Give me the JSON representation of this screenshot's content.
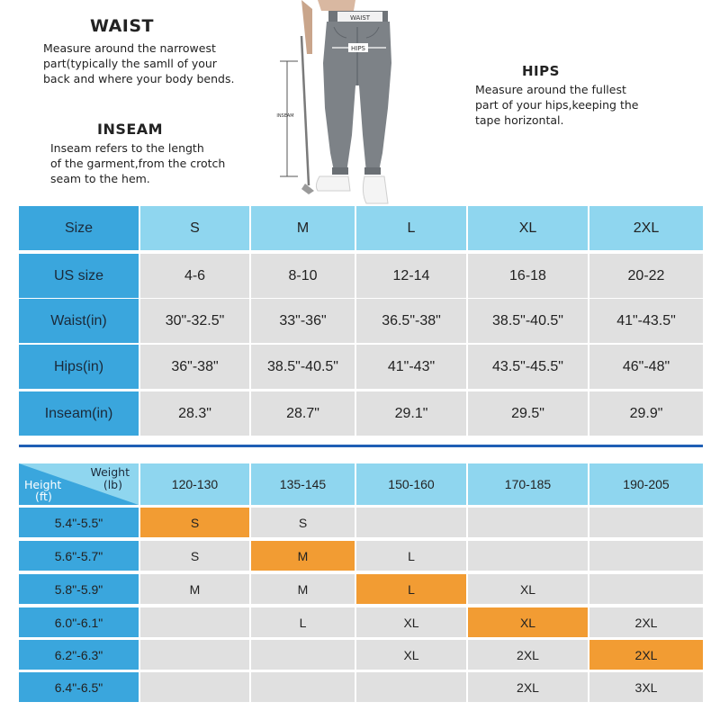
{
  "waist": {
    "heading": "WAIST",
    "lines": [
      "Measure around the narrowest",
      "part(typically the samll of your",
      "back and where your body bends."
    ]
  },
  "inseam": {
    "heading": "INSEAM",
    "lines": [
      "Inseam refers to the length",
      "of the garment,from the crotch",
      "seam to the hem."
    ]
  },
  "hips": {
    "heading": "HIPS",
    "lines": [
      "Measure around the fullest",
      "part of your hips,keeping the",
      "tape horizontal."
    ]
  },
  "figure": {
    "waist_label": "WAIST",
    "hips_label": "HIPS",
    "inseam_label": "INSEAM"
  },
  "size_chart": {
    "header": "Size",
    "sizes": [
      "S",
      "M",
      "L",
      "XL",
      "2XL"
    ],
    "rows": [
      {
        "label": "US size",
        "values": [
          "4-6",
          "8-10",
          "12-14",
          "16-18",
          "20-22"
        ]
      },
      {
        "label": "Waist(in)",
        "values": [
          "30\"-32.5\"",
          "33\"-36\"",
          "36.5\"-38\"",
          "38.5\"-40.5\"",
          "41\"-43.5\""
        ]
      },
      {
        "label": "Hips(in)",
        "values": [
          "36\"-38\"",
          "38.5\"-40.5\"",
          "41\"-43\"",
          "43.5\"-45.5\"",
          "46\"-48\""
        ]
      },
      {
        "label": "Inseam(in)",
        "values": [
          "28.3\"",
          "28.7\"",
          "29.1\"",
          "29.5\"",
          "29.9\""
        ]
      }
    ]
  },
  "fit_chart": {
    "corner_weight": "Weight",
    "corner_weight_unit": "(lb)",
    "corner_height": "Height",
    "corner_height_unit": "(ft)",
    "weights": [
      "120-130",
      "135-145",
      "150-160",
      "170-185",
      "190-205"
    ],
    "rows": [
      {
        "height": "5.4\"-5.5\"",
        "values": [
          "S",
          "S",
          "",
          "",
          ""
        ],
        "highlight": 0
      },
      {
        "height": "5.6\"-5.7\"",
        "values": [
          "S",
          "M",
          "L",
          "",
          ""
        ],
        "highlight": 1
      },
      {
        "height": "5.8\"-5.9\"",
        "values": [
          "M",
          "M",
          "L",
          "XL",
          ""
        ],
        "highlight": 2
      },
      {
        "height": "6.0\"-6.1\"",
        "values": [
          "",
          "L",
          "XL",
          "XL",
          "2XL"
        ],
        "highlight": 3
      },
      {
        "height": "6.2\"-6.3\"",
        "values": [
          "",
          "",
          "XL",
          "2XL",
          "2XL"
        ],
        "highlight": 4
      },
      {
        "height": "6.4\"-6.5\"",
        "values": [
          "",
          "",
          "",
          "2XL",
          "3XL"
        ],
        "highlight": -1
      }
    ],
    "highlight_color": "#f29c33"
  },
  "colors": {
    "header_blue": "#3aa6dd",
    "light_blue": "#8fd6ef",
    "cell_gray": "#e0e0e0",
    "divider": "#1f5fb5"
  }
}
